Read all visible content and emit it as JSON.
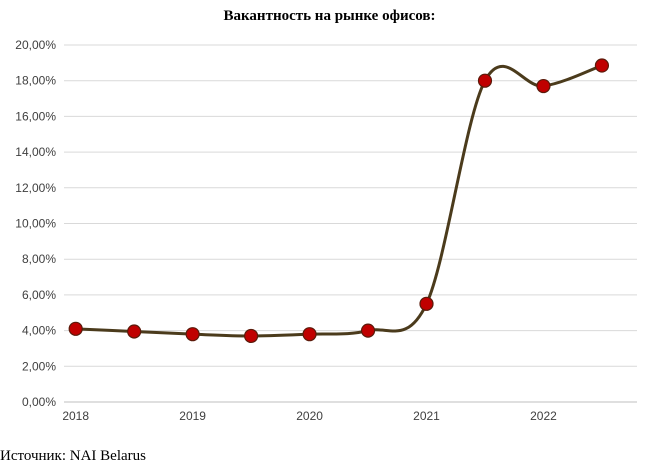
{
  "chart_data": {
    "type": "line",
    "title": "Вакантность на рынке офисов:",
    "xlabel": "",
    "ylabel": "",
    "x_tick_labels": [
      "2018",
      "2019",
      "2020",
      "2021",
      "2022"
    ],
    "y_tick_labels": [
      "0,00%",
      "2,00%",
      "4,00%",
      "6,00%",
      "8,00%",
      "10,00%",
      "12,00%",
      "14,00%",
      "16,00%",
      "18,00%",
      "20,00%"
    ],
    "ylim": [
      0,
      20
    ],
    "xlim": [
      2017.9,
      2022.8
    ],
    "grid": "horizontal",
    "legend": "none",
    "series": [
      {
        "x": [
          2018.0,
          2018.5,
          2019.0,
          2019.5,
          2020.0,
          2020.5,
          2021.0,
          2021.5,
          2022.0,
          2022.5
        ],
        "values": [
          4.1,
          3.95,
          3.8,
          3.7,
          3.8,
          4.0,
          5.5,
          18.0,
          17.7,
          18.85
        ],
        "line_color": "#4b3b1c",
        "marker_color": "#c00000"
      }
    ]
  },
  "source": "Источник: NAI Belarus"
}
